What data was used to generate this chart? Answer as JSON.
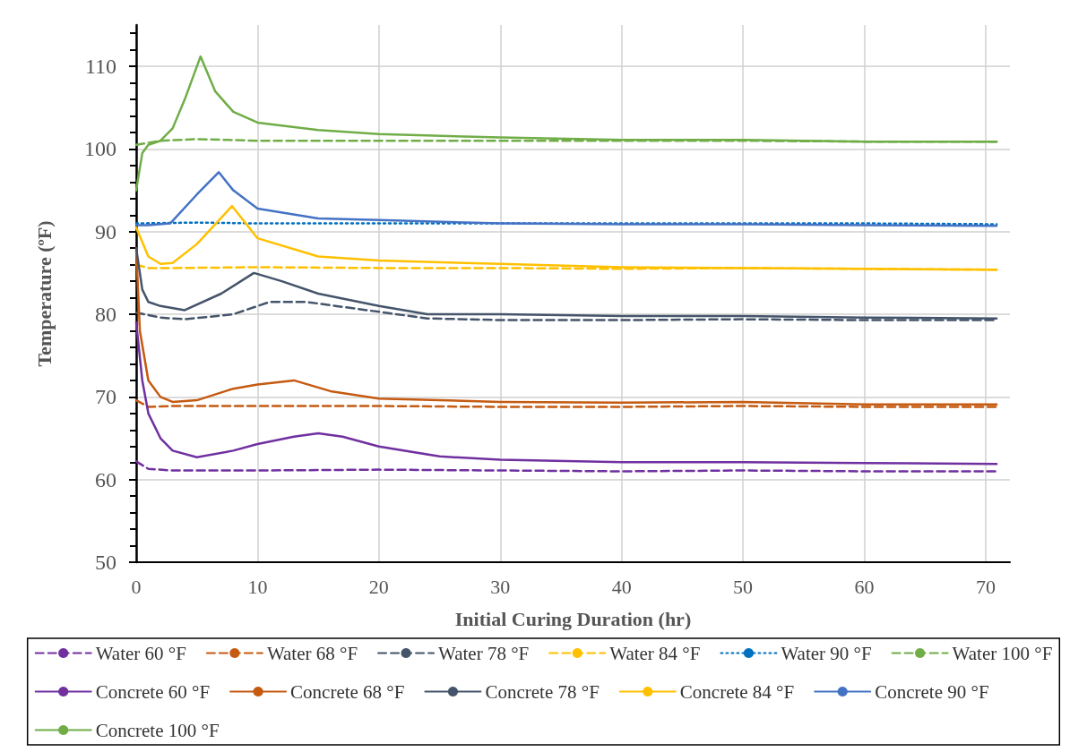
{
  "chart_data": {
    "type": "line",
    "xlabel": "Initial Curing Duration (hr)",
    "ylabel": "Temperature (ºF)",
    "xlim": [
      0,
      72
    ],
    "xticks": [
      0,
      10,
      20,
      30,
      40,
      50,
      60,
      70
    ],
    "ylim": [
      50,
      115
    ],
    "yticks": [
      50,
      60,
      70,
      80,
      90,
      100,
      110
    ],
    "grid": true,
    "legend": "bottom",
    "marker": "none",
    "series": [
      {
        "name": "Water 60 °F",
        "color": "#7030a0",
        "line_style": "dashed",
        "x": [
          0,
          1,
          3,
          10,
          20,
          30,
          40,
          50,
          60,
          70.9
        ],
        "values": [
          62.2,
          61.3,
          61.1,
          61.1,
          61.2,
          61.1,
          61.0,
          61.1,
          61.0,
          61.0
        ]
      },
      {
        "name": "Water 68 °F",
        "color": "#c55a11",
        "line_style": "dashed",
        "x": [
          0,
          1,
          3,
          10,
          20,
          30,
          40,
          50,
          60,
          70.9
        ],
        "values": [
          69.6,
          68.8,
          68.9,
          68.9,
          68.9,
          68.8,
          68.8,
          68.9,
          68.8,
          68.8
        ]
      },
      {
        "name": "Water 78 °F",
        "color": "#44546a",
        "line_style": "dashed",
        "x": [
          0,
          2,
          4,
          8,
          11,
          14,
          19,
          24,
          30,
          40,
          50,
          60,
          70.9
        ],
        "values": [
          80.2,
          79.6,
          79.4,
          80,
          81.5,
          81.5,
          80.5,
          79.5,
          79.3,
          79.3,
          79.4,
          79.3,
          79.3
        ]
      },
      {
        "name": "Water 84 °F",
        "color": "#ffc000",
        "line_style": "dashed",
        "x": [
          0,
          1,
          3,
          10,
          20,
          30,
          40,
          50,
          60,
          70.9
        ],
        "values": [
          86,
          85.6,
          85.6,
          85.7,
          85.6,
          85.6,
          85.5,
          85.6,
          85.5,
          85.4
        ]
      },
      {
        "name": "Water 90 °F",
        "color": "#0070c0",
        "line_style": "dotted",
        "x": [
          0,
          5,
          10,
          20,
          30,
          40,
          50,
          60,
          70.9
        ],
        "values": [
          91,
          91.1,
          91,
          91,
          91,
          91,
          91,
          91,
          90.9
        ]
      },
      {
        "name": "Water 100 °F",
        "color": "#70ad47",
        "line_style": "dashed",
        "x": [
          0,
          2,
          5,
          10,
          20,
          30,
          40,
          50,
          60,
          70.9
        ],
        "values": [
          100.5,
          101,
          101.2,
          101,
          101,
          101,
          101,
          101,
          100.9,
          100.9
        ]
      },
      {
        "name": "Concrete 60 °F",
        "color": "#7030a0",
        "line_style": "solid",
        "x": [
          0,
          0.5,
          1,
          2,
          3,
          5,
          8,
          10,
          13,
          15,
          17,
          20,
          25,
          30,
          40,
          50,
          60,
          70.9
        ],
        "values": [
          79,
          72,
          68,
          65,
          63.5,
          62.7,
          63.5,
          64.3,
          65.2,
          65.6,
          65.2,
          64,
          62.8,
          62.4,
          62.1,
          62.1,
          62,
          61.9
        ]
      },
      {
        "name": "Concrete 68 °F",
        "color": "#c55a11",
        "line_style": "solid",
        "x": [
          0,
          0.3,
          1,
          2,
          3,
          5,
          8,
          10,
          13,
          16,
          20,
          30,
          40,
          50,
          60,
          70.9
        ],
        "values": [
          88,
          78,
          72,
          70,
          69.4,
          69.6,
          71,
          71.5,
          72,
          70.7,
          69.8,
          69.4,
          69.3,
          69.4,
          69.1,
          69.1
        ]
      },
      {
        "name": "Concrete 78 °F",
        "color": "#44546a",
        "line_style": "solid",
        "x": [
          0,
          0.5,
          1,
          2,
          4,
          7,
          9.7,
          12,
          15,
          20,
          24,
          30,
          40,
          50,
          60,
          70.9
        ],
        "values": [
          88,
          83,
          81.5,
          81,
          80.5,
          82.5,
          85,
          84,
          82.5,
          81,
          80,
          80,
          79.8,
          79.8,
          79.6,
          79.5
        ]
      },
      {
        "name": "Concrete 84 °F",
        "color": "#ffc000",
        "line_style": "solid",
        "x": [
          0,
          1,
          2,
          3,
          5,
          7.9,
          10,
          15,
          20,
          30,
          40,
          50,
          60,
          70.9
        ],
        "values": [
          90.5,
          87,
          86.1,
          86.2,
          88.5,
          93.1,
          89.2,
          87,
          86.5,
          86.1,
          85.7,
          85.6,
          85.5,
          85.4
        ]
      },
      {
        "name": "Concrete 90 °F",
        "color": "#4472c4",
        "line_style": "solid",
        "x": [
          0,
          1,
          2.8,
          5,
          6.8,
          8,
          10,
          15,
          20,
          30,
          40,
          50,
          60,
          70.9
        ],
        "values": [
          90.8,
          90.8,
          91,
          94.5,
          97.2,
          95,
          92.8,
          91.6,
          91.4,
          91,
          90.9,
          90.9,
          90.8,
          90.7
        ]
      },
      {
        "name": "Concrete 100 °F",
        "color": "#70ad47",
        "line_style": "solid",
        "x": [
          0,
          0.5,
          1,
          2,
          3,
          4,
          5.3,
          6.5,
          8,
          10,
          15,
          20,
          30,
          40,
          50,
          60,
          70.9
        ],
        "values": [
          95,
          99.5,
          100.5,
          101,
          102.5,
          106,
          111.2,
          107,
          104.5,
          103.2,
          102.3,
          101.8,
          101.4,
          101.1,
          101.1,
          100.9,
          100.9
        ]
      }
    ]
  }
}
